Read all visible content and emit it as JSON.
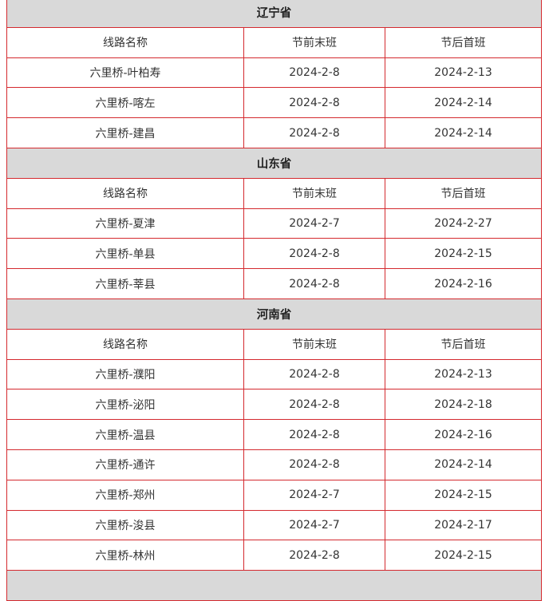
{
  "columns": [
    "线路名称",
    "节前末班",
    "节后首班"
  ],
  "sections": [
    {
      "province": "辽宁省",
      "rows": [
        [
          "六里桥-叶柏寿",
          "2024-2-8",
          "2024-2-13"
        ],
        [
          "六里桥-喀左",
          "2024-2-8",
          "2024-2-14"
        ],
        [
          "六里桥-建昌",
          "2024-2-8",
          "2024-2-14"
        ]
      ]
    },
    {
      "province": "山东省",
      "rows": [
        [
          "六里桥-夏津",
          "2024-2-7",
          "2024-2-27"
        ],
        [
          "六里桥-单县",
          "2024-2-8",
          "2024-2-15"
        ],
        [
          "六里桥-莘县",
          "2024-2-8",
          "2024-2-16"
        ]
      ]
    },
    {
      "province": "河南省",
      "rows": [
        [
          "六里桥-濮阳",
          "2024-2-8",
          "2024-2-13"
        ],
        [
          "六里桥-泌阳",
          "2024-2-8",
          "2024-2-18"
        ],
        [
          "六里桥-温县",
          "2024-2-8",
          "2024-2-16"
        ],
        [
          "六里桥-通许",
          "2024-2-8",
          "2024-2-14"
        ],
        [
          "六里桥-郑州",
          "2024-2-7",
          "2024-2-15"
        ],
        [
          "六里桥-浚县",
          "2024-2-7",
          "2024-2-17"
        ],
        [
          "六里桥-林州",
          "2024-2-8",
          "2024-2-15"
        ]
      ]
    }
  ],
  "colors": {
    "border": "#d42a2f",
    "section_bg": "#d9d9d9"
  }
}
